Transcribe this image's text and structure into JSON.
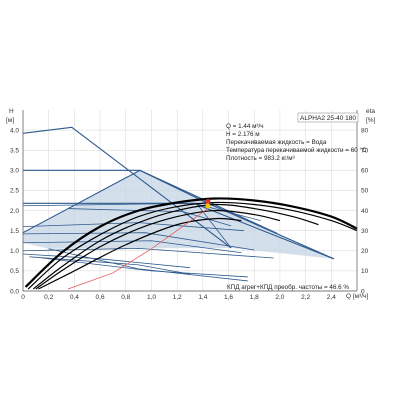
{
  "chart_data": {
    "type": "line",
    "model": "ALPHA2 25-40 180",
    "left_axis": {
      "label_top": "H",
      "label_unit": "[м]",
      "ticks": [
        "0.0",
        "0.5",
        "1.0",
        "1.5",
        "2.0",
        "2.5",
        "3.0",
        "3.5",
        "4.0"
      ],
      "range": [
        0,
        4.5
      ]
    },
    "right_axis": {
      "label_top": "eta",
      "label_unit": "[%]",
      "ticks": [
        "0",
        "10",
        "20",
        "30",
        "40",
        "50",
        "60",
        "70",
        "80"
      ],
      "range": [
        0,
        90
      ]
    },
    "x_axis": {
      "label": "Q [м³/ч]",
      "ticks": [
        "0",
        "0,2",
        "0,4",
        "0,6",
        "0,8",
        "1,0",
        "1,2",
        "1,4",
        "1,6",
        "1,8",
        "2,0",
        "2,2",
        "2,4"
      ],
      "range": [
        0,
        2.6
      ]
    },
    "info_lines": [
      "Q = 1.44 м³/ч",
      "H = 2.176 м",
      "Перекачиваемая жидкость = Вода",
      "Температура перекачиваемой жидкости = 60 °C",
      "Плотность = 983.2 кг/м³"
    ],
    "bottom_note": "КПД агрег+КПД преобр. частоты = 46.6 %",
    "operating_point": {
      "q": 1.44,
      "h": 2.176,
      "efficiency": 46.6
    },
    "pump_curves": [
      {
        "name": "",
        "x": [
          0,
          0.38,
          1.62
        ],
        "y": [
          3.92,
          4.07,
          1.07
        ]
      },
      {
        "name": "",
        "x": [
          0,
          0.91,
          1.98
        ],
        "y": [
          3.0,
          3.0,
          1.43
        ]
      },
      {
        "name": "",
        "x": [
          0,
          1.33,
          2.42
        ],
        "y": [
          2.18,
          2.18,
          0.8
        ]
      },
      {
        "name": "",
        "x": [
          0,
          0.91,
          1.44,
          2.42
        ],
        "y": [
          1.45,
          3.0,
          2.18,
          0.8
        ]
      },
      {
        "name": "",
        "x": [
          0,
          1.35,
          1.62
        ],
        "y": [
          2.12,
          2.18,
          1.07
        ]
      },
      {
        "name": "",
        "x": [
          0,
          0.9,
          1.72
        ],
        "y": [
          1.6,
          1.7,
          1.5
        ]
      },
      {
        "name": "",
        "x": [
          0,
          0.95,
          1.8
        ],
        "y": [
          1.42,
          1.45,
          1.02
        ]
      },
      {
        "name": "",
        "x": [
          0,
          1.0,
          1.7
        ],
        "y": [
          1.2,
          1.25,
          0.95
        ]
      },
      {
        "name": "",
        "x": [
          0,
          0.9,
          1.95
        ],
        "y": [
          1.0,
          1.06,
          0.82
        ]
      },
      {
        "name": "",
        "x": [
          0,
          0.6,
          1.3
        ],
        "y": [
          0.92,
          0.8,
          0.58
        ]
      },
      {
        "name": "",
        "x": [
          0.05,
          0.9,
          1.3
        ],
        "y": [
          0.85,
          0.65,
          0.42
        ]
      },
      {
        "name": "",
        "x": [
          0.2,
          0.9,
          1.75
        ],
        "y": [
          1.05,
          0.55,
          0.25
        ]
      },
      {
        "name": "",
        "x": [
          0.15,
          1.0,
          1.75
        ],
        "y": [
          0.82,
          0.5,
          0.35
        ]
      },
      {
        "name": "",
        "x": [
          1.33,
          1.85
        ],
        "y": [
          2.18,
          1.75
        ]
      },
      {
        "name": "",
        "x": [
          0.35,
          1.25,
          1.62
        ],
        "y": [
          2.05,
          1.97,
          1.62
        ]
      }
    ],
    "efficiency_curves": [
      {
        "name": "",
        "x": [
          0.02,
          0.3,
          0.6,
          0.9,
          1.2,
          1.5,
          1.8,
          2.1,
          2.4,
          2.6
        ],
        "y": [
          2,
          19,
          32,
          40,
          44,
          46,
          45,
          42,
          37,
          31
        ]
      },
      {
        "name": "",
        "x": [
          0.04,
          0.3,
          0.6,
          0.9,
          1.2,
          1.5,
          1.8,
          2.1,
          2.4,
          2.6
        ],
        "y": [
          1,
          16,
          28,
          37,
          42,
          44,
          43,
          40,
          35,
          30
        ]
      },
      {
        "name": "",
        "x": [
          0.08,
          0.3,
          0.6,
          0.9,
          1.2,
          1.5,
          1.8,
          2.1,
          2.3
        ],
        "y": [
          1,
          12,
          25,
          34,
          40,
          43,
          41,
          37,
          33
        ]
      },
      {
        "name": "",
        "x": [
          0.1,
          0.3,
          0.6,
          0.9,
          1.2,
          1.5,
          1.8,
          2.0
        ],
        "y": [
          1,
          10,
          22,
          31,
          37,
          40,
          38,
          35
        ]
      },
      {
        "name": "",
        "x": [
          0.12,
          0.4,
          0.8,
          1.2,
          1.5,
          1.7
        ],
        "y": [
          1,
          10,
          23,
          33,
          36,
          35
        ]
      }
    ],
    "power_curve": {
      "x": [
        0.35,
        0.7,
        1.0,
        1.25,
        1.44
      ],
      "y": [
        0.05,
        0.45,
        1.05,
        1.62,
        2.05
      ]
    },
    "colors": {
      "curve": "#2d5a8e",
      "shade": "#c5d4e6",
      "efficiency": "#000000",
      "power": "#e05050",
      "point_a": "#e8302a",
      "point_b": "#f5c400",
      "grid": "#cccccc"
    },
    "grid": true
  }
}
